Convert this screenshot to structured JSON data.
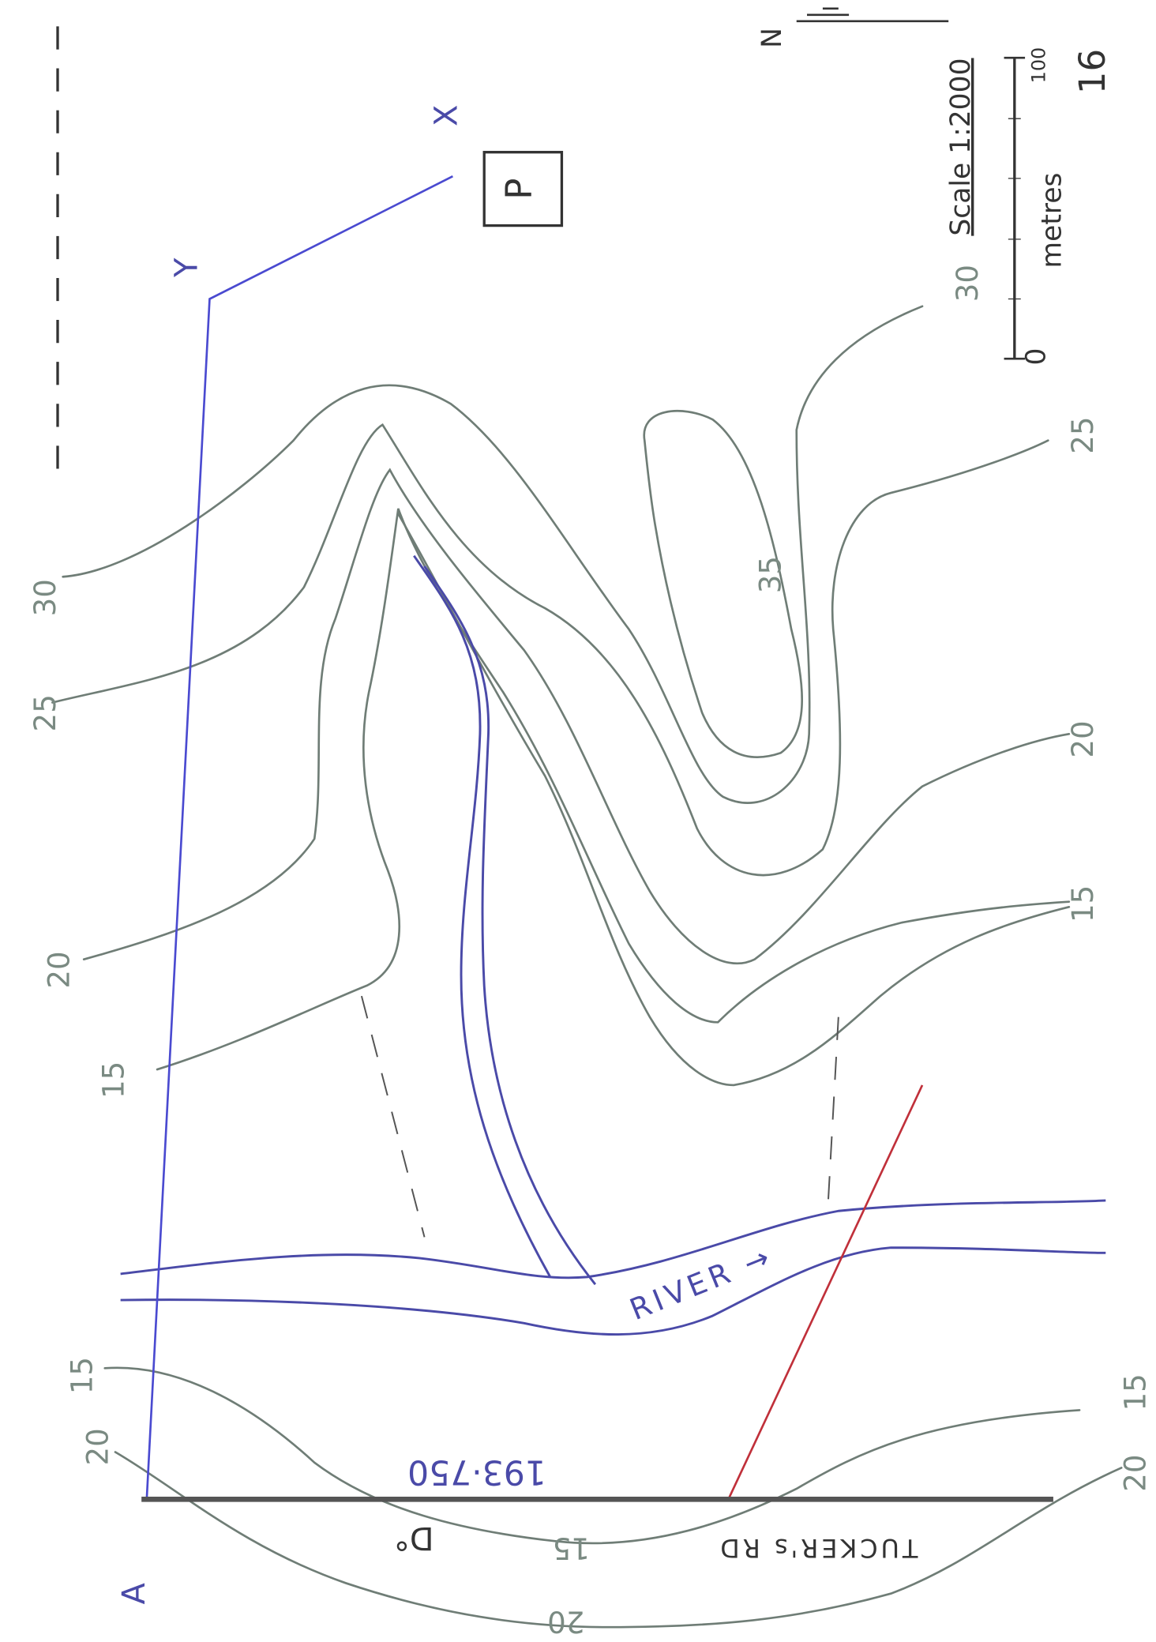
{
  "contour_labels": {
    "left": [
      "30",
      "25",
      "20",
      "15"
    ],
    "bottom_left": [
      "20",
      "15"
    ],
    "right": [
      "25",
      "20",
      "15"
    ],
    "bottom_right": [
      "15",
      "20"
    ],
    "hill_top": "35",
    "top_right": "30",
    "road_side": [
      "15",
      "20"
    ]
  },
  "scale": {
    "title": "Scale 1:2000",
    "unit": "metres",
    "start": "0",
    "end": "100"
  },
  "north": "N",
  "sheet_number": "16",
  "markers": {
    "box": "P",
    "x": "X",
    "y": "Y",
    "a": "A"
  },
  "river": "RIVER →",
  "spot_height": "193·750",
  "road": "TUCKER's RD",
  "point": "D°"
}
